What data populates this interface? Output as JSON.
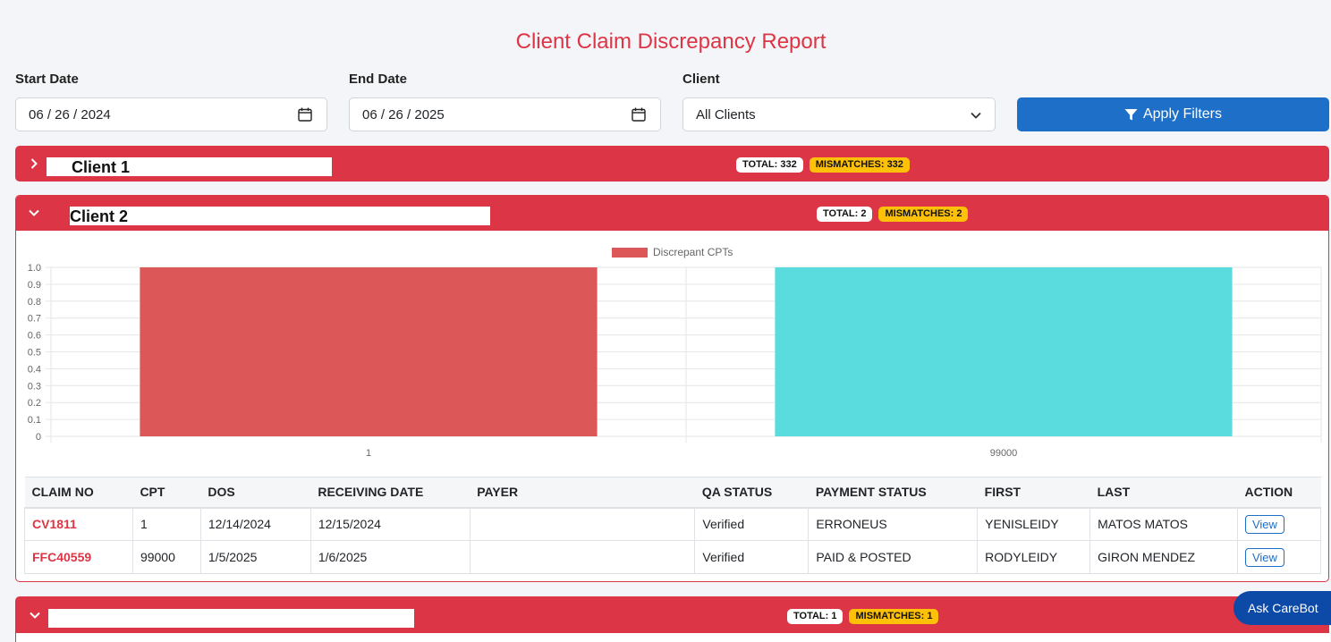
{
  "page": {
    "title": "Client Claim Discrepancy Report"
  },
  "filters": {
    "start_label": "Start Date",
    "start_value": "06 / 26 / 2024",
    "end_label": "End Date",
    "end_value": "06 / 26 / 2025",
    "client_label": "Client",
    "client_value": "All Clients",
    "apply_label": "Apply Filters"
  },
  "clients": [
    {
      "name": "Client 1",
      "total": "TOTAL: 332",
      "mismatches": "MISMATCHES: 332",
      "expanded": false
    },
    {
      "name": "Client 2",
      "total": "TOTAL: 2",
      "mismatches": "MISMATCHES: 2",
      "expanded": true
    },
    {
      "name": "",
      "total": "TOTAL: 1",
      "mismatches": "MISMATCHES: 1",
      "expanded": true
    }
  ],
  "chart_data": {
    "type": "bar",
    "categories": [
      "1",
      "99000"
    ],
    "series": [
      {
        "name": "Discrepant CPTs",
        "values": [
          1,
          1
        ],
        "colors": [
          "#dc5858",
          "#5adbdd"
        ]
      }
    ],
    "ylim": [
      0,
      1.0
    ],
    "yticks": [
      "1.0",
      "0.9",
      "0.8",
      "0.7",
      "0.6",
      "0.5",
      "0.4",
      "0.3",
      "0.2",
      "0.1",
      "0"
    ],
    "grid": true,
    "legend": "top"
  },
  "table": {
    "headers": [
      "CLAIM NO",
      "CPT",
      "DOS",
      "RECEIVING DATE",
      "PAYER",
      "QA STATUS",
      "PAYMENT STATUS",
      "FIRST",
      "LAST",
      "ACTION"
    ],
    "rows": [
      [
        "CV1811",
        "1",
        "12/14/2024",
        "12/15/2024",
        "",
        "Verified",
        "ERRONEUS",
        "YENISLEIDY",
        "MATOS MATOS",
        "View"
      ],
      [
        "FFC40559",
        "99000",
        "1/5/2025",
        "1/6/2025",
        "",
        "Verified",
        "PAID & POSTED",
        "RODYLEIDY",
        "GIRON MENDEZ",
        "View"
      ]
    ]
  },
  "carebot": {
    "label": "Ask CareBot"
  },
  "colors": {
    "danger": "#dc3545",
    "primary": "#1e6fc7",
    "warning": "#ffc107",
    "carebot": "#0d4aa8"
  },
  "icons": {
    "calendar": "calendar-icon",
    "chevron_down": "chevron-down-icon",
    "chevron_right": "chevron-right-icon",
    "filter": "filter-icon"
  }
}
